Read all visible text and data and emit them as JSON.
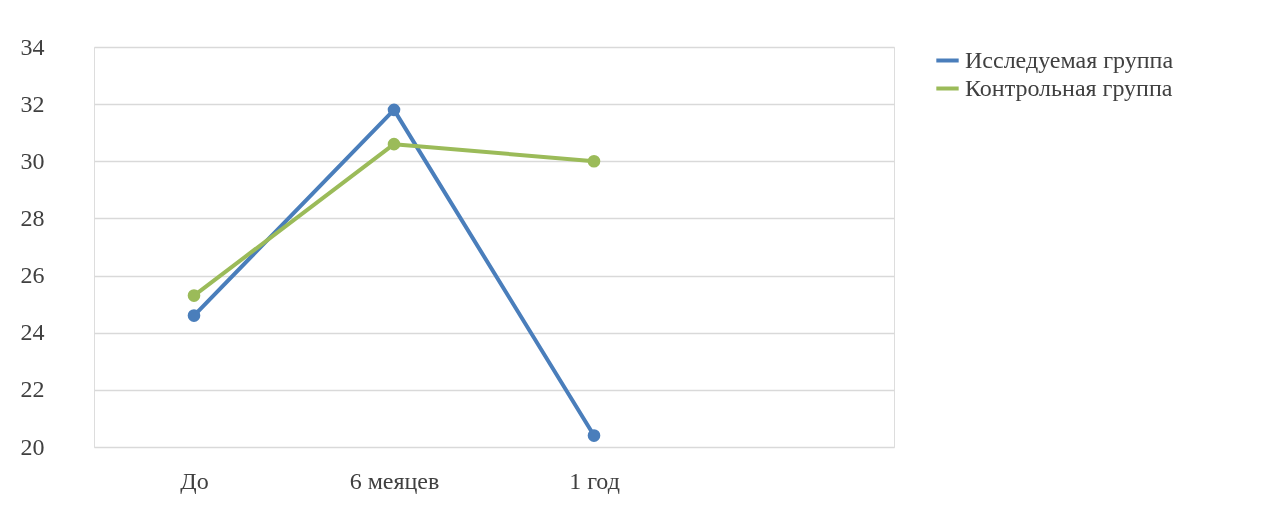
{
  "chart_data": {
    "type": "line",
    "categories": [
      "До",
      "6 меяцев",
      "1 год",
      null
    ],
    "series": [
      {
        "name": "Исследуемая группа",
        "color": "#4a7ebb",
        "values": [
          24.6,
          31.8,
          20.4,
          null
        ]
      },
      {
        "name": "Контрольная группа",
        "color": "#9bbb59",
        "values": [
          25.3,
          30.6,
          30.0,
          null
        ]
      }
    ],
    "ylim": [
      20,
      34
    ],
    "yticks": [
      20,
      22,
      24,
      26,
      28,
      30,
      32,
      34
    ],
    "grid": "y",
    "legend": "right",
    "marker": "circle",
    "line_style": "solid"
  }
}
